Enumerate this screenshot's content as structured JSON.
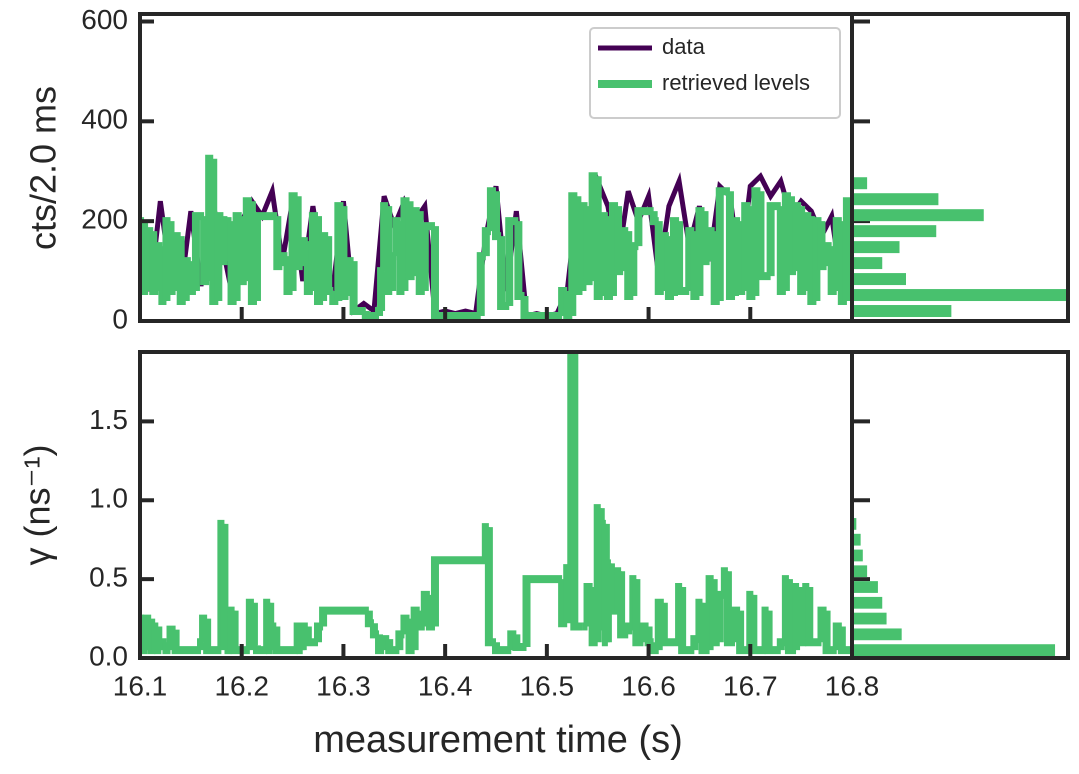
{
  "chart_data": [
    {
      "type": "line",
      "ylabel": "cts/2.0 ms",
      "xlim": [
        16.1,
        16.8
      ],
      "ylim": [
        0,
        615
      ],
      "yticks": [
        0,
        200,
        400,
        600
      ],
      "legend": "upper right",
      "series": [
        {
          "name": "data",
          "color": "#440154",
          "x": [
            16.1,
            16.11,
            16.12,
            16.13,
            16.14,
            16.15,
            16.16,
            16.17,
            16.18,
            16.19,
            16.2,
            16.21,
            16.22,
            16.23,
            16.24,
            16.25,
            16.26,
            16.27,
            16.28,
            16.29,
            16.3,
            16.31,
            16.32,
            16.33,
            16.34,
            16.35,
            16.36,
            16.37,
            16.38,
            16.39,
            16.4,
            16.41,
            16.42,
            16.43,
            16.44,
            16.45,
            16.46,
            16.47,
            16.48,
            16.49,
            16.5,
            16.51,
            16.52,
            16.53,
            16.54,
            16.55,
            16.56,
            16.57,
            16.58,
            16.59,
            16.6,
            16.61,
            16.62,
            16.63,
            16.64,
            16.65,
            16.66,
            16.67,
            16.68,
            16.69,
            16.7,
            16.71,
            16.72,
            16.73,
            16.74,
            16.75,
            16.76,
            16.77,
            16.78,
            16.79,
            16.8
          ],
          "values": [
            180,
            60,
            240,
            90,
            60,
            220,
            70,
            250,
            160,
            60,
            200,
            240,
            210,
            260,
            120,
            240,
            80,
            230,
            100,
            70,
            240,
            20,
            35,
            20,
            250,
            190,
            240,
            200,
            230,
            15,
            20,
            15,
            20,
            15,
            170,
            270,
            60,
            220,
            10,
            15,
            10,
            15,
            60,
            240,
            180,
            280,
            230,
            120,
            260,
            200,
            250,
            90,
            230,
            280,
            150,
            230,
            120,
            270,
            250,
            100,
            270,
            290,
            250,
            280,
            210,
            240,
            220,
            170,
            210,
            70,
            180
          ]
        },
        {
          "name": "retrieved levels",
          "color": "#48c16e",
          "drawstyle": "steps-post",
          "x": [
            16.1,
            16.104,
            16.108,
            16.113,
            16.118,
            16.122,
            16.126,
            16.13,
            16.135,
            16.14,
            16.145,
            16.15,
            16.155,
            16.163,
            16.168,
            16.172,
            16.177,
            16.182,
            16.186,
            16.19,
            16.195,
            16.2,
            16.205,
            16.21,
            16.215,
            16.235,
            16.24,
            16.245,
            16.25,
            16.255,
            16.26,
            16.265,
            16.27,
            16.275,
            16.28,
            16.285,
            16.29,
            16.295,
            16.3,
            16.305,
            16.31,
            16.322,
            16.335,
            16.337,
            16.34,
            16.344,
            16.348,
            16.352,
            16.356,
            16.36,
            16.365,
            16.37,
            16.375,
            16.38,
            16.39,
            16.435,
            16.44,
            16.445,
            16.45,
            16.455,
            16.463,
            16.472,
            16.478,
            16.515,
            16.52,
            16.525,
            16.53,
            16.535,
            16.54,
            16.545,
            16.55,
            16.555,
            16.56,
            16.565,
            16.57,
            16.575,
            16.58,
            16.585,
            16.59,
            16.605,
            16.61,
            16.615,
            16.62,
            16.625,
            16.63,
            16.64,
            16.645,
            16.65,
            16.655,
            16.66,
            16.665,
            16.67,
            16.68,
            16.685,
            16.69,
            16.695,
            16.7,
            16.705,
            16.71,
            16.72,
            16.73,
            16.735,
            16.74,
            16.745,
            16.75,
            16.755,
            16.76,
            16.765,
            16.77,
            16.775,
            16.78,
            16.785,
            16.79,
            16.795,
            16.8
          ],
          "values": [
            200,
            60,
            180,
            60,
            150,
            40,
            200,
            60,
            170,
            40,
            120,
            60,
            210,
            80,
            325,
            40,
            210,
            120,
            200,
            40,
            210,
            80,
            240,
            40,
            210,
            110,
            130,
            60,
            250,
            110,
            160,
            60,
            210,
            40,
            170,
            60,
            40,
            230,
            50,
            120,
            20,
            10,
            20,
            100,
            230,
            60,
            130,
            200,
            60,
            240,
            90,
            220,
            60,
            190,
            10,
            130,
            180,
            260,
            170,
            30,
            200,
            50,
            10,
            60,
            10,
            250,
            60,
            230,
            80,
            290,
            50,
            210,
            50,
            230,
            100,
            180,
            50,
            150,
            220,
            200,
            60,
            170,
            50,
            200,
            60,
            180,
            50,
            220,
            120,
            180,
            40,
            260,
            50,
            200,
            60,
            230,
            50,
            260,
            90,
            230,
            60,
            250,
            100,
            230,
            60,
            210,
            40,
            200,
            110,
            150,
            60,
            200,
            40,
            240,
            240
          ]
        }
      ]
    },
    {
      "type": "histogram",
      "orientation": "horizontal",
      "color": "#48c16e",
      "xlim": [
        0,
        100
      ],
      "bins": [
        4,
        36,
        68,
        100,
        132,
        164,
        196,
        228,
        260,
        292
      ],
      "counts": [
        46,
        104,
        25,
        14,
        22,
        39,
        61,
        40,
        7
      ]
    },
    {
      "type": "line",
      "xlabel": "measurement time (s)",
      "ylabel": "γ (ns⁻¹)",
      "xlim": [
        16.1,
        16.8
      ],
      "xticks": [
        16.1,
        16.2,
        16.3,
        16.4,
        16.5,
        16.6,
        16.7,
        16.8
      ],
      "ylim": [
        0,
        1.94
      ],
      "yticks": [
        {
          "value": 0,
          "label": "0.0"
        },
        0.5,
        {
          "value": 1,
          "label": "1.0"
        },
        1.5
      ],
      "series": [
        {
          "color": "#48c16e",
          "drawstyle": "steps-post",
          "x": [
            16.1,
            16.104,
            16.107,
            16.111,
            16.115,
            16.118,
            16.121,
            16.126,
            16.13,
            16.135,
            16.16,
            16.162,
            16.166,
            16.18,
            16.183,
            16.187,
            16.19,
            16.193,
            16.208,
            16.212,
            16.215,
            16.225,
            16.228,
            16.23,
            16.234,
            16.255,
            16.258,
            16.26,
            16.265,
            16.275,
            16.28,
            16.325,
            16.33,
            16.335,
            16.34,
            16.345,
            16.355,
            16.36,
            16.365,
            16.37,
            16.375,
            16.38,
            16.385,
            16.39,
            16.44,
            16.443,
            16.45,
            16.465,
            16.47,
            16.48,
            16.515,
            16.52,
            16.524,
            16.527,
            16.535,
            16.54,
            16.545,
            16.55,
            16.553,
            16.555,
            16.558,
            16.56,
            16.563,
            16.57,
            16.573,
            16.58,
            16.585,
            16.588,
            16.595,
            16.6,
            16.605,
            16.61,
            16.615,
            16.625,
            16.63,
            16.633,
            16.645,
            16.65,
            16.653,
            16.66,
            16.664,
            16.67,
            16.675,
            16.678,
            16.685,
            16.69,
            16.7,
            16.703,
            16.715,
            16.718,
            16.73,
            16.735,
            16.738,
            16.745,
            16.748,
            16.755,
            16.758,
            16.77,
            16.775,
            16.785,
            16.79,
            16.8
          ],
          "values": [
            0.25,
            0.05,
            0.25,
            0.05,
            0.2,
            0.05,
            0.1,
            0.05,
            0.18,
            0.05,
            0.1,
            0.25,
            0.05,
            0.85,
            0.1,
            0.05,
            0.3,
            0.05,
            0.35,
            0.08,
            0.05,
            0.35,
            0.05,
            0.2,
            0.05,
            0.2,
            0.05,
            0.2,
            0.1,
            0.2,
            0.3,
            0.22,
            0.15,
            0.05,
            0.12,
            0.05,
            0.15,
            0.25,
            0.05,
            0.3,
            0.2,
            0.4,
            0.2,
            0.62,
            0.83,
            0.1,
            0.05,
            0.15,
            0.07,
            0.5,
            0.22,
            0.57,
            2.0,
            0.2,
            0.2,
            0.45,
            0.1,
            0.95,
            0.2,
            0.85,
            0.1,
            0.6,
            0.3,
            0.55,
            0.15,
            0.2,
            0.5,
            0.1,
            0.2,
            0.1,
            0.05,
            0.35,
            0.1,
            0.1,
            0.45,
            0.05,
            0.12,
            0.35,
            0.05,
            0.5,
            0.1,
            0.4,
            0.55,
            0.1,
            0.3,
            0.05,
            0.4,
            0.05,
            0.3,
            0.05,
            0.1,
            0.5,
            0.05,
            0.45,
            0.1,
            0.45,
            0.1,
            0.3,
            0.05,
            0.2,
            0.05,
            0.05
          ]
        }
      ]
    },
    {
      "type": "histogram",
      "orientation": "horizontal",
      "color": "#48c16e",
      "xlim": [
        0,
        100
      ],
      "bins": [
        0,
        0.1,
        0.2,
        0.3,
        0.4,
        0.5,
        0.6,
        0.7,
        0.8,
        0.9
      ],
      "counts": [
        94,
        23,
        16,
        14,
        12,
        7,
        5,
        4,
        2
      ]
    }
  ]
}
